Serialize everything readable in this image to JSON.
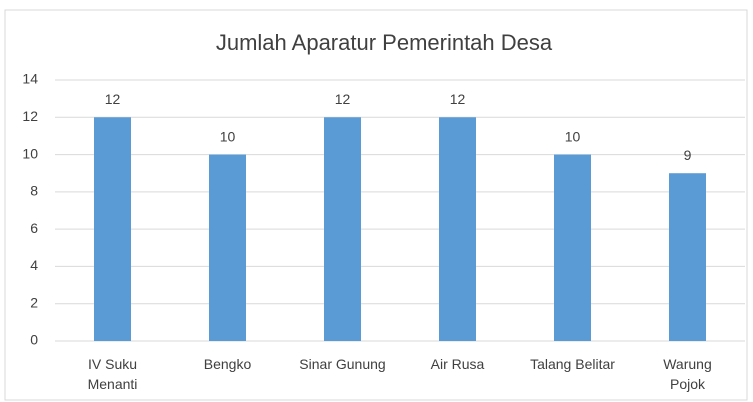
{
  "chart_data": {
    "type": "bar",
    "title": "Jumlah Aparatur Pemerintah Desa",
    "categories": [
      "IV Suku Menanti",
      "Bengko",
      "Sinar Gunung",
      "Air Rusa",
      "Talang Belitar",
      "Warung Pojok"
    ],
    "values": [
      12,
      10,
      12,
      12,
      10,
      9
    ],
    "color": "#5b9bd5",
    "ylim": [
      0,
      14
    ],
    "yticks": [
      0,
      2,
      4,
      6,
      8,
      10,
      12,
      14
    ],
    "grid": true,
    "data_labels": true
  }
}
